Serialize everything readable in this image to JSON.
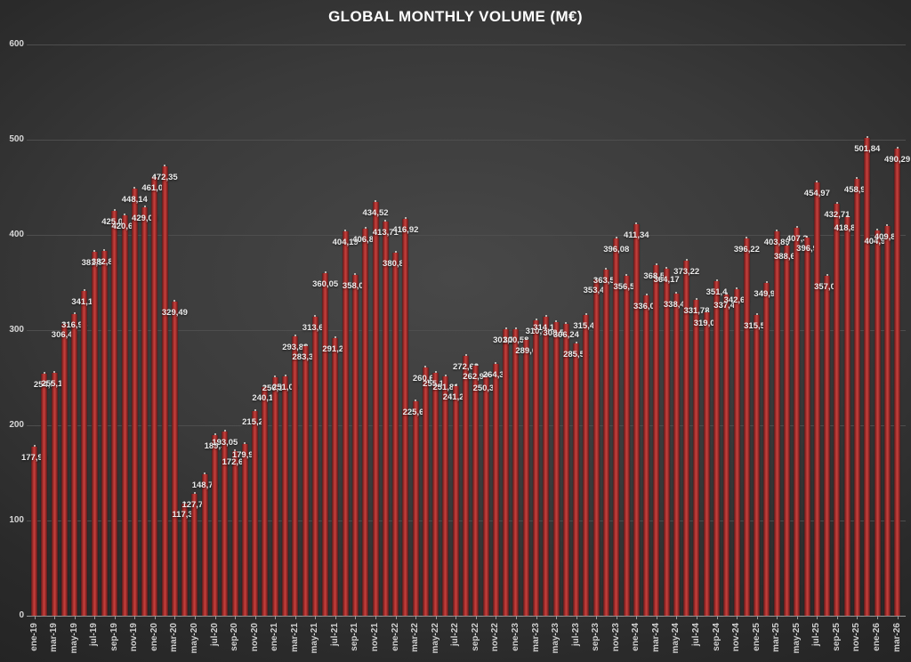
{
  "colors": {
    "bar_center": "#c6423e",
    "bar_edge": "#571d1d",
    "bar_mid": "#a32c2a",
    "background_center": "#484848",
    "background_corner": "#232323",
    "gridline": "#4e4e4e",
    "axis_line": "#9a9a9a",
    "title_text": "#ffffff",
    "value_label_text": "#ebebeb",
    "axis_label_text": "#cfcfcf"
  },
  "chart_data": {
    "type": "bar",
    "title": "GLOBAL MONTHLY VOLUME (M€)",
    "xlabel": "",
    "ylabel": "",
    "ylim": [
      0,
      600
    ],
    "grid": "horizontal",
    "legend": "none",
    "y_ticks": [
      "0",
      "100",
      "200",
      "300",
      "400",
      "500",
      "600"
    ],
    "x_tick_labels": [
      "ene-19",
      "mar-19",
      "may-19",
      "jul-19",
      "sep-19",
      "nov-19",
      "ene-20",
      "mar-20",
      "may-20",
      "jul-20",
      "sep-20",
      "nov-20",
      "ene-21",
      "mar-21",
      "may-21",
      "jul-21",
      "sep-21",
      "nov-21",
      "ene-22",
      "mar-22",
      "may-22",
      "jul-22",
      "sep-22",
      "nov-22",
      "ene-23",
      "mar-23",
      "may-23",
      "jul-23",
      "sep-23",
      "nov-23",
      "ene-24",
      "mar-24",
      "may-24",
      "jul-24",
      "sep-24",
      "nov-24",
      "ene-25",
      "mar-25",
      "may-25",
      "jul-25",
      "sep-25",
      "nov-25",
      "ene-26",
      "mar-26"
    ],
    "series": [
      {
        "name": "Global Monthly Volume",
        "values": [
          177.98,
          254.5,
          255.12,
          306.45,
          316.94,
          341.16,
          381.98,
          382.89,
          425.04,
          420.69,
          448.14,
          429.05,
          461.02,
          472.35,
          329.49,
          117.37,
          127.7,
          148.79,
          189.3,
          193.05,
          172.66,
          179.98,
          215.26,
          240.1,
          250.17,
          251.09,
          293.88,
          283.39,
          313.67,
          360.05,
          291.29,
          404.19,
          358.04,
          406.89,
          434.52,
          413.71,
          380.86,
          416.92,
          225.67,
          260.62,
          255.19,
          251.81,
          241.21,
          272.62,
          262.92,
          250.31,
          264.34,
          301.31,
          300.58,
          289.6,
          310.4,
          314.14,
          308.53,
          306.24,
          285.54,
          315.47,
          353.44,
          363.53,
          396.08,
          356.56,
          411.34,
          336.04,
          368.55,
          364.17,
          338.41,
          373.22,
          331.78,
          319.02,
          351.4,
          337.46,
          342.65,
          396.22,
          315.57,
          349.99,
          403.89,
          388.68,
          407.3,
          396.9,
          454.97,
          357.03,
          432.71,
          418.86,
          458.91,
          501.84,
          404.94,
          409.81,
          490.29
        ]
      }
    ],
    "point_labels": [
      "177,98",
      "254,5",
      "255,12",
      "306,45",
      "316,94",
      "341,16",
      "381,98",
      "382,89",
      "425,04",
      "420,69",
      "448,14",
      "429,05",
      "461,02",
      "472,35",
      "329,49",
      "117,37",
      "127,70",
      "148,79",
      "189,3",
      "193,05",
      "172,66",
      "179,98",
      "215,26",
      "240,10",
      "250,17",
      "251,09",
      "293,88",
      "283,39",
      "313,67",
      "360,05",
      "291,29",
      "404,19",
      "358,04",
      "406,89",
      "434,52",
      "413,71",
      "380,86",
      "416,92",
      "225,67",
      "260,62",
      "255,19",
      "251,81",
      "241,21",
      "272,62",
      "262,92",
      "250,31",
      "264,34",
      "301,31",
      "300,58",
      "289,6",
      "310,4",
      "314,14",
      "308,53",
      "306,24",
      "285,54",
      "315,47",
      "353,44",
      "363,53",
      "396,08",
      "356,56",
      "411,34",
      "336,04",
      "368,55",
      "364,17",
      "338,41",
      "373,22",
      "331,78",
      "319,02",
      "351,4",
      "337,46",
      "342,65",
      "396,22",
      "315,57",
      "349,99",
      "403,89",
      "388,68",
      "407,3",
      "396,9",
      "454,97",
      "357,03",
      "432,71",
      "418,86",
      "458,91",
      "501,84",
      "404,94",
      "409,81",
      "490,29"
    ]
  }
}
